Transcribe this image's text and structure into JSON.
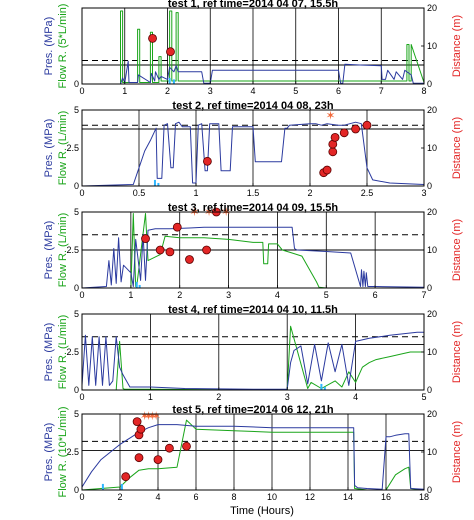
{
  "x_axis_label": "Time (Hours)",
  "left_axis_label_pres": "Pres. (MPa)",
  "right_axis_label": "Distance (m)",
  "colors": {
    "pressure": "#2b3a9f",
    "flow": "#1aa51a",
    "injection": "#2fb6ff",
    "marker_fill": "#e32626",
    "marker_edge": "#5a0000",
    "star": "#f36a3c",
    "dashed_line": "#000000"
  },
  "chart_data": [
    {
      "type": "line",
      "title": "test 1, ref time=2014 04 07, 15.5h",
      "flow_label": "Flow R. (5*L/min)",
      "xlim": [
        0,
        8
      ],
      "x_ticks": [
        0,
        1,
        2,
        3,
        4,
        5,
        6,
        7,
        8
      ],
      "ylim": [
        0,
        5
      ],
      "y_ticks": [
        0,
        2.5,
        5
      ],
      "y_tick_labels": [
        "0",
        "",
        ""
      ],
      "right_ylim": [
        0,
        20
      ],
      "right_ticks": [
        0,
        10,
        20
      ],
      "hline_solid": 1.25,
      "hline_dashed": 1.55,
      "pressure": {
        "x": [
          0,
          0.9,
          0.95,
          1,
          1.08,
          1.1,
          1.3,
          1.32,
          1.6,
          1.62,
          1.7,
          1.72,
          1.8,
          1.85,
          2.0,
          2.05,
          2.15,
          2.2,
          2.25,
          2.8,
          2.85,
          3.0,
          3.05,
          6.0,
          6.05,
          6.1,
          6.15,
          6.5,
          7.0,
          7.02,
          7.1,
          7.15,
          7.3,
          7.35,
          7.5,
          7.55,
          7.7,
          7.75,
          8.0
        ],
        "y": [
          0,
          0,
          0.4,
          0.1,
          1.5,
          0.1,
          0.1,
          0.6,
          0.1,
          0.7,
          0.2,
          0.8,
          0.3,
          0.5,
          0.3,
          1.1,
          0.8,
          1.2,
          0.8,
          0.8,
          0.05,
          0.05,
          0.9,
          0.9,
          0.05,
          0.05,
          1.3,
          1.25,
          1.2,
          0.3,
          0.3,
          0.9,
          0.3,
          0.8,
          0.3,
          0.9,
          0.6,
          0.05,
          0.05
        ]
      },
      "flow": {
        "x": [
          0,
          0.9,
          0.9,
          0.95,
          0.95,
          1.3,
          1.3,
          1.35,
          1.35,
          1.6,
          1.6,
          1.65,
          1.65,
          1.8,
          1.8,
          1.85,
          1.85,
          2.05,
          2.05,
          2.1,
          2.1,
          2.2,
          2.2,
          2.25,
          2.25,
          3.0,
          3.05,
          3.05,
          6.0,
          6.05,
          6.05,
          7.0,
          7.0,
          7.6,
          7.6,
          7.65,
          7.65,
          7.7,
          7.7,
          8.0
        ],
        "y": [
          0,
          0,
          4.8,
          4.8,
          0.1,
          0.1,
          3.6,
          3.6,
          0.1,
          0.1,
          3.4,
          3.4,
          0.1,
          0.1,
          1.8,
          1.8,
          0.2,
          0.2,
          4.8,
          4.8,
          0.2,
          0.2,
          4.7,
          4.7,
          0.2,
          0.2,
          0.2,
          0.2,
          0.2,
          0.2,
          0.2,
          0.2,
          0.2,
          0.2,
          2.6,
          2.6,
          0.2,
          0.2,
          2.6,
          0.1
        ]
      },
      "injection": {
        "x": [
          2.05,
          2.15
        ],
        "y": [
          0.4,
          0.3
        ]
      },
      "distance": {
        "x": [
          1.65,
          2.07
        ],
        "y": [
          12.0,
          8.5
        ]
      },
      "stars": []
    },
    {
      "type": "line",
      "title": "test 2, ref time=2014 04 08, 23h",
      "flow_label": "Flow R. (L/min)",
      "xlim": [
        0,
        3
      ],
      "x_ticks": [
        0,
        0.5,
        1,
        1.5,
        2,
        2.5,
        3
      ],
      "ylim": [
        0,
        5
      ],
      "y_ticks": [
        0,
        2.5,
        5
      ],
      "y_tick_labels": [
        "0",
        "2.5",
        "5"
      ],
      "right_ylim": [
        0,
        20
      ],
      "right_ticks": [
        0,
        10,
        20
      ],
      "hline_solid": 3.75,
      "hline_dashed": 4.0,
      "pressure": {
        "x": [
          0,
          0.45,
          0.5,
          0.55,
          0.6,
          0.65,
          0.66,
          0.7,
          0.72,
          0.75,
          0.78,
          0.8,
          0.82,
          0.85,
          0.88,
          0.95,
          0.97,
          1.0,
          1.02,
          1.05,
          1.08,
          1.1,
          1.12,
          1.2,
          1.22,
          1.3,
          1.32,
          1.5,
          1.52,
          1.75,
          1.78,
          1.8,
          1.82,
          2.0,
          2.05,
          2.1,
          2.15,
          2.25,
          2.3,
          2.4,
          2.45,
          2.5,
          2.55,
          2.7,
          3.0
        ],
        "y": [
          0,
          0.1,
          1.2,
          2.3,
          3.0,
          3.8,
          0.5,
          0.5,
          4.0,
          4.1,
          1.2,
          1.2,
          4.1,
          4.2,
          3.9,
          3.9,
          0.2,
          0.2,
          4.0,
          4.1,
          1.0,
          1.0,
          4.1,
          4.1,
          1.0,
          1.0,
          3.9,
          3.9,
          1.6,
          1.6,
          3.8,
          3.8,
          4.0,
          4.1,
          4.1,
          4.0,
          4.1,
          4.0,
          4.0,
          4.2,
          4.1,
          1.2,
          0.4,
          0.2,
          0.1
        ]
      },
      "flow": {
        "x": [
          0,
          3
        ],
        "y": [
          0,
          0
        ]
      },
      "injection": {
        "x": [
          0.64,
          0.67
        ],
        "y": [
          0.4,
          0.2
        ]
      },
      "distance": {
        "x": [
          1.1,
          2.12,
          2.15,
          2.2,
          2.2,
          2.22,
          2.3,
          2.4,
          2.5
        ],
        "y": [
          6.5,
          3.5,
          4.2,
          9.0,
          11.0,
          12.8,
          14.0,
          15.0,
          16.0
        ]
      },
      "stars": [
        {
          "x": 2.18,
          "y": 18.5
        }
      ]
    },
    {
      "type": "line",
      "title": "test 3, ref time=2014 04 09, 15.5h",
      "flow_label": "Flow R. (L/min)",
      "xlim": [
        0,
        7
      ],
      "x_ticks": [
        0,
        1,
        2,
        3,
        4,
        5,
        6,
        7
      ],
      "ylim": [
        0,
        5
      ],
      "y_ticks": [
        0,
        2.5,
        5
      ],
      "y_tick_labels": [
        "0",
        "2.5",
        "5"
      ],
      "right_ylim": [
        0,
        20
      ],
      "right_ticks": [
        0,
        10,
        20
      ],
      "hline_solid": 2.5,
      "hline_dashed": 3.5,
      "pressure": {
        "x": [
          0,
          0.5,
          0.55,
          0.6,
          0.65,
          0.7,
          0.75,
          0.8,
          0.85,
          1.0,
          1.05,
          1.1,
          1.2,
          1.25,
          1.3,
          1.35,
          1.5,
          1.8,
          2.2,
          2.5,
          3.0,
          3.5,
          4.0,
          4.3,
          4.35,
          4.4,
          5.0,
          5.5,
          5.7,
          5.72,
          5.75,
          5.77,
          5.8,
          5.82,
          5.85,
          5.9,
          6.0,
          7.0
        ],
        "y": [
          0,
          0.1,
          1.8,
          0.2,
          2.6,
          0.3,
          3.3,
          0.4,
          1.5,
          1.0,
          0.1,
          3.2,
          0.5,
          3.5,
          0.5,
          3.8,
          3.9,
          3.9,
          3.95,
          4.0,
          4.0,
          4.0,
          4.0,
          4.0,
          2.6,
          2.5,
          2.4,
          2.3,
          0.1,
          1.2,
          0.1,
          1.1,
          0.1,
          1.0,
          0.1,
          0.1,
          0.1,
          0.05
        ]
      },
      "flow": {
        "x": [
          0,
          1.0,
          1.05,
          1.1,
          1.12,
          1.3,
          1.35,
          1.6,
          1.7,
          2.0,
          2.3,
          2.5,
          3.0,
          3.5,
          3.7,
          3.72,
          3.8,
          3.82,
          4.0,
          4.1,
          4.3,
          4.5,
          4.8,
          4.85,
          5.0,
          7.0
        ],
        "y": [
          0,
          0,
          4.9,
          0.1,
          0.1,
          4.9,
          1.8,
          2.2,
          3.4,
          3.3,
          3.3,
          3.3,
          3.2,
          3.0,
          3.0,
          1.6,
          1.6,
          2.9,
          2.9,
          2.5,
          2.3,
          2.1,
          0.4,
          0.05,
          0,
          0
        ]
      },
      "injection": {
        "x": [
          1.12,
          1.18
        ],
        "y": [
          0.4,
          0.2
        ]
      },
      "distance": {
        "x": [
          1.3,
          1.6,
          1.8,
          1.95,
          2.2,
          2.55,
          2.75
        ],
        "y": [
          13.0,
          10.0,
          9.5,
          16.0,
          7.5,
          10.0,
          20.0
        ]
      },
      "stars": [
        {
          "x": 2.3,
          "y": 20
        },
        {
          "x": 2.6,
          "y": 20
        },
        {
          "x": 2.95,
          "y": 20
        }
      ]
    },
    {
      "type": "line",
      "title": "test 4, ref time=2014 04 10, 11.5h",
      "flow_label": "Flow R. (L/min)",
      "xlim": [
        0,
        5
      ],
      "x_ticks": [
        0,
        1,
        2,
        3,
        4,
        5
      ],
      "ylim": [
        0,
        5
      ],
      "y_ticks": [
        0,
        2.5,
        5
      ],
      "y_tick_labels": [
        "0",
        "2.5",
        "5"
      ],
      "right_ylim": [
        0,
        20
      ],
      "right_ticks": [
        0,
        10,
        20
      ],
      "hline_solid": 3.0,
      "hline_dashed": 3.5,
      "pressure": {
        "x": [
          0,
          0.05,
          0.1,
          0.15,
          0.2,
          0.25,
          0.3,
          0.35,
          0.4,
          0.45,
          0.5,
          0.55,
          0.6,
          0.7,
          1.0,
          1.5,
          2.5,
          3.0,
          3.05,
          3.1,
          3.2,
          3.3,
          3.4,
          3.5,
          3.6,
          3.7,
          3.8,
          3.9,
          4.0,
          4.2,
          4.5,
          4.7,
          4.9,
          5.0
        ],
        "y": [
          0.3,
          3.6,
          0.3,
          3.5,
          0.3,
          3.5,
          0.3,
          3.5,
          0.3,
          0.6,
          3.5,
          1.5,
          1.0,
          0.2,
          0.2,
          0.1,
          0.05,
          0.05,
          1.8,
          2.6,
          2.9,
          0.4,
          3.0,
          0.6,
          3.1,
          1.2,
          3.0,
          0.3,
          3.2,
          3.4,
          3.6,
          3.7,
          3.8,
          3.8
        ]
      },
      "flow": {
        "x": [
          0,
          0.5,
          0.55,
          0.6,
          0.62,
          1.0,
          2.5,
          2.9,
          3.0,
          3.05,
          3.3,
          3.35,
          3.5,
          3.7,
          3.8,
          3.9,
          4.0,
          4.1,
          4.2,
          4.3,
          4.5,
          4.7,
          4.8,
          5.0
        ],
        "y": [
          0,
          0,
          3.2,
          0.1,
          0.05,
          0.05,
          0,
          0,
          0,
          4.2,
          0.1,
          0.5,
          0.1,
          0.6,
          0.2,
          1.2,
          0.5,
          1.5,
          1.8,
          2.0,
          2.2,
          2.4,
          2.5,
          2.5
        ]
      },
      "injection": {
        "x": [
          3.5,
          3.55
        ],
        "y": [
          0.4,
          0.2
        ]
      },
      "distance": {
        "x": [],
        "y": []
      },
      "stars": []
    },
    {
      "type": "line",
      "title": "test 5, ref time=2014 06 12, 21h",
      "flow_label": "Flow R. (10*L/min)",
      "xlim": [
        0,
        18
      ],
      "x_ticks": [
        0,
        2,
        4,
        6,
        8,
        10,
        12,
        14,
        16,
        18
      ],
      "ylim": [
        0,
        5
      ],
      "y_ticks": [
        0,
        2.5,
        5
      ],
      "y_tick_labels": [
        "0",
        "2.5",
        "5"
      ],
      "right_ylim": [
        0,
        20
      ],
      "right_ticks": [
        0,
        10,
        20
      ],
      "hline_solid": 2.6,
      "hline_dashed": 3.2,
      "pressure": {
        "x": [
          0,
          0.5,
          1.0,
          1.5,
          2.0,
          2.5,
          3.0,
          3.5,
          4.0,
          5.0,
          6.0,
          8.0,
          10.0,
          12.0,
          14.0,
          14.3,
          14.35,
          14.5,
          15.0,
          15.8,
          16.0,
          16.2,
          16.5,
          17.0,
          17.2,
          17.3,
          18.0
        ],
        "y": [
          0.2,
          1.2,
          2.0,
          2.5,
          3.0,
          3.4,
          3.8,
          4.1,
          4.3,
          4.3,
          4.2,
          4.2,
          4.1,
          4.1,
          4.1,
          4.1,
          0.3,
          0.15,
          0.1,
          0.05,
          3.5,
          3.5,
          3.6,
          3.7,
          3.7,
          0.1,
          0.05
        ]
      },
      "flow": {
        "x": [
          0,
          2.0,
          2.5,
          3.0,
          3.5,
          4.0,
          5.0,
          5.5,
          6.0,
          8.0,
          10.0,
          12.0,
          14.0,
          14.3,
          14.35,
          15.0,
          16.0,
          16.5,
          17.0,
          17.2,
          17.3,
          18.0
        ],
        "y": [
          0,
          0.2,
          0.8,
          1.3,
          1.4,
          1.4,
          1.5,
          4.6,
          4.0,
          3.9,
          3.8,
          3.8,
          3.8,
          3.8,
          0.1,
          0,
          0,
          1.0,
          1.4,
          1.5,
          0.1,
          0
        ]
      },
      "injection": {
        "x": [
          1.1,
          2.1
        ],
        "y": [
          0.4,
          0.4
        ]
      },
      "distance": {
        "x": [
          2.3,
          2.9,
          3.0,
          3.0,
          3.1,
          4.0,
          4.6,
          5.5
        ],
        "y": [
          3.5,
          18.0,
          14.5,
          8.5,
          16.0,
          8.0,
          11.0,
          11.5
        ]
      },
      "stars": [
        {
          "x": 3.3,
          "y": 19.5
        },
        {
          "x": 3.5,
          "y": 19.5
        },
        {
          "x": 3.7,
          "y": 19.5
        },
        {
          "x": 3.9,
          "y": 19.5
        }
      ]
    }
  ]
}
